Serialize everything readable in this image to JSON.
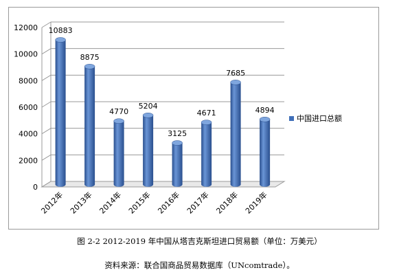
{
  "chart_data": {
    "type": "bar",
    "categories": [
      "2012年",
      "2013年",
      "2014年",
      "2015年",
      "2016年",
      "2017年",
      "2018年",
      "2019年"
    ],
    "series": [
      {
        "name": "中国进口总额",
        "values": [
          10883,
          8875,
          4770,
          5204,
          3125,
          4671,
          7685,
          4894
        ]
      }
    ],
    "ylim": [
      0,
      12000
    ],
    "yticks": [
      0,
      2000,
      4000,
      6000,
      8000,
      10000,
      12000
    ],
    "grid": true,
    "legend_position": "right",
    "bar_style": "3d-cylinder",
    "colors": {
      "bar_front": "#3f6fb8",
      "bar_light": "#6a95d6",
      "bar_dark": "#2a4f8e",
      "bar_top": "#7fa6de",
      "grid": "#9a9a9a"
    }
  },
  "caption": "图 2-2   2012-2019 年中国从塔吉克斯坦进口贸易额（单位：万美元）",
  "source": "资料来源：联合国商品贸易数据库（UNcomtrade）。"
}
